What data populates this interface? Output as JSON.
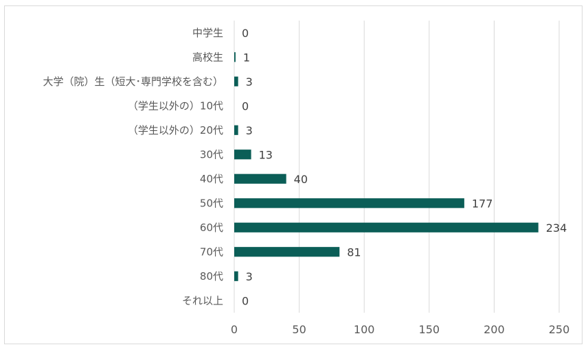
{
  "chart_data": {
    "type": "bar",
    "orientation": "horizontal",
    "title": "",
    "xlabel": "",
    "ylabel": "",
    "categories": [
      "中学生",
      "高校生",
      "大学（院）生（短大･専門学校を含む）",
      "（学生以外の）10代",
      "（学生以外の）20代",
      "30代",
      "40代",
      "50代",
      "60代",
      "70代",
      "80代",
      "それ以上"
    ],
    "values": [
      0,
      1,
      3,
      0,
      3,
      13,
      40,
      177,
      234,
      81,
      3,
      0
    ],
    "xlim": [
      0,
      250
    ],
    "xticks": [
      0,
      50,
      100,
      150,
      200,
      250
    ],
    "grid": true,
    "legend": "none",
    "bar_color": "#0b5e57"
  }
}
